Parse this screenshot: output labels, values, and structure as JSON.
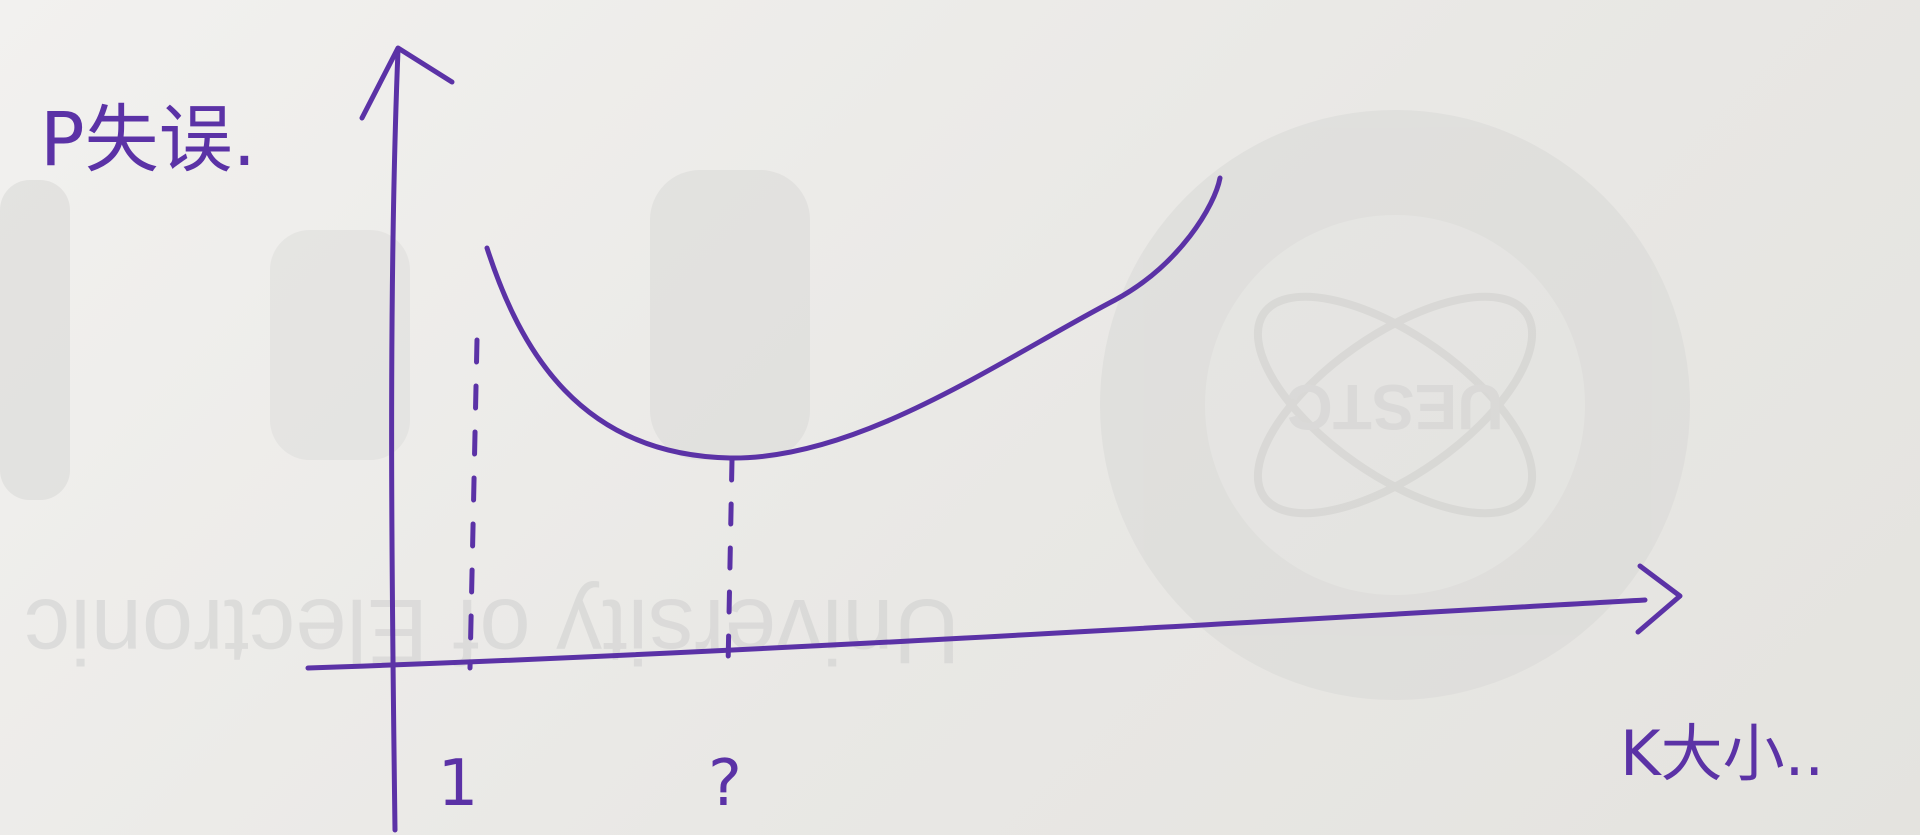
{
  "ink_color": "#5b32a6",
  "watermark": {
    "seal_text": "UESTC",
    "line_text": "University of Electronic"
  },
  "chart_data": {
    "type": "line",
    "title": "",
    "ylabel": "P失误.",
    "xlabel": "K大小..",
    "x_ticks": [
      "1",
      "?"
    ],
    "curve": "U-shaped: starts high at K=1, reaches a minimum at the marked point '?', then rises again as K grows",
    "grid": false,
    "legend": "none"
  }
}
